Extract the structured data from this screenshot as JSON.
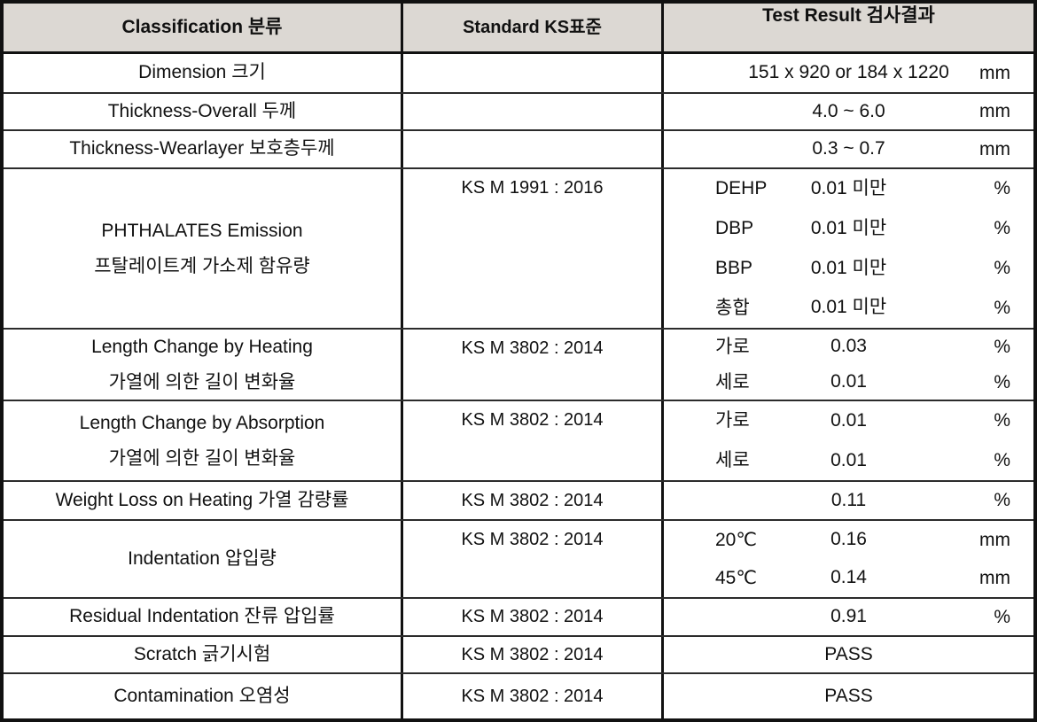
{
  "header": {
    "classification": "Classification 분류",
    "standard": "Standard  KS표준",
    "test_result": "Test Result  검사결과"
  },
  "rows": [
    {
      "classification": [
        "Dimension 크기"
      ],
      "standard": "",
      "results": [
        {
          "label": "",
          "value": "151 x 920 or 184 x 1220",
          "unit": "mm"
        }
      ]
    },
    {
      "classification": [
        "Thickness-Overall  두께"
      ],
      "standard": "",
      "results": [
        {
          "label": "",
          "value": "4.0 ~ 6.0",
          "unit": "mm"
        }
      ]
    },
    {
      "classification": [
        "Thickness-Wearlayer 보호층두께"
      ],
      "standard": "",
      "results": [
        {
          "label": "",
          "value": "0.3 ~ 0.7",
          "unit": "mm"
        }
      ]
    },
    {
      "classification": [
        "PHTHALATES Emission",
        "프탈레이트계 가소제 함유량"
      ],
      "standard": "KS M 1991 : 2016",
      "results": [
        {
          "label": "DEHP",
          "value": "0.01 미만",
          "unit": "%"
        },
        {
          "label": "DBP",
          "value": "0.01 미만",
          "unit": "%"
        },
        {
          "label": "BBP",
          "value": "0.01 미만",
          "unit": "%"
        },
        {
          "label": "총합",
          "value": "0.01 미만",
          "unit": "%"
        }
      ]
    },
    {
      "classification": [
        "Length Change by Heating",
        "가열에 의한 길이 변화율"
      ],
      "standard": "KS M 3802 : 2014",
      "results": [
        {
          "label": "가로",
          "value": "0.03",
          "unit": "%"
        },
        {
          "label": "세로",
          "value": "0.01",
          "unit": "%"
        }
      ]
    },
    {
      "classification": [
        "Length Change by Absorption",
        "가열에 의한 길이 변화율"
      ],
      "standard": "KS M 3802 : 2014",
      "results": [
        {
          "label": "가로",
          "value": "0.01",
          "unit": "%"
        },
        {
          "label": "세로",
          "value": "0.01",
          "unit": "%"
        }
      ]
    },
    {
      "classification": [
        "Weight Loss on Heating  가열 감량률"
      ],
      "standard": "KS M 3802 : 2014",
      "results": [
        {
          "label": "",
          "value": "0.11",
          "unit": "%"
        }
      ]
    },
    {
      "classification": [
        "Indentation  압입량"
      ],
      "standard": "KS M 3802 : 2014",
      "results": [
        {
          "label": "20℃",
          "value": "0.16",
          "unit": "mm"
        },
        {
          "label": "45℃",
          "value": "0.14",
          "unit": "mm"
        }
      ]
    },
    {
      "classification": [
        "Residual Indentation  잔류 압입률"
      ],
      "standard": "KS M 3802 : 2014",
      "results": [
        {
          "label": "",
          "value": "0.91",
          "unit": "%"
        }
      ]
    },
    {
      "classification": [
        "Scratch  긁기시험"
      ],
      "standard": "KS M 3802 : 2014",
      "results": [
        {
          "label": "",
          "value": "PASS",
          "unit": ""
        }
      ]
    },
    {
      "classification": [
        "Contamination  오염성"
      ],
      "standard": "KS M 3802 : 2014",
      "results": [
        {
          "label": "",
          "value": "PASS",
          "unit": ""
        }
      ]
    }
  ],
  "colors": {
    "header_bg": "#dcd8d3",
    "outer_border": "#111111",
    "grid_line": "#2b2b2b",
    "text": "#111111",
    "cell_bg": "#ffffff"
  }
}
